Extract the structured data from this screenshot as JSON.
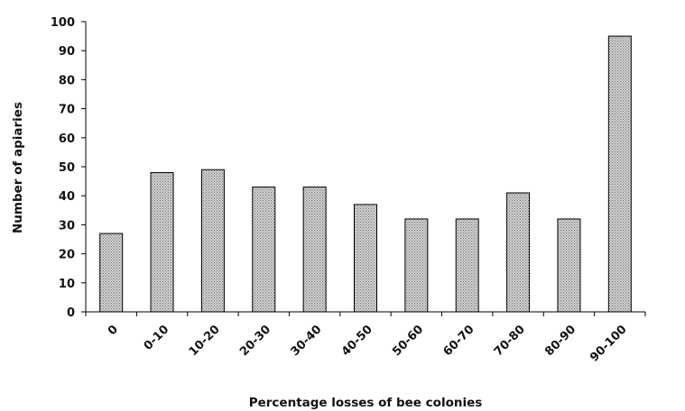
{
  "chart_data": {
    "type": "bar",
    "title": "",
    "xlabel": "Percentage losses of bee colonies",
    "ylabel": "Number of  apiaries",
    "categories": [
      "0",
      "0-10",
      "10-20",
      "20-30",
      "30-40",
      "40-50",
      "50-60",
      "60-70",
      "70-80",
      "80-90",
      "90-100"
    ],
    "values": [
      27,
      48,
      49,
      43,
      43,
      37,
      32,
      32,
      41,
      32,
      95
    ],
    "ylim": [
      0,
      100
    ],
    "yticks": [
      0,
      10,
      20,
      30,
      40,
      50,
      60,
      70,
      80,
      90,
      100
    ],
    "grid": false,
    "legend": "none",
    "bar_fill_pattern": "dotted",
    "colors": {
      "bar_fill": "#d2d2d2",
      "bar_dot": "#6e6e6e",
      "bar_stroke": "#000000",
      "axis": "#000000",
      "text": "#111111"
    }
  }
}
